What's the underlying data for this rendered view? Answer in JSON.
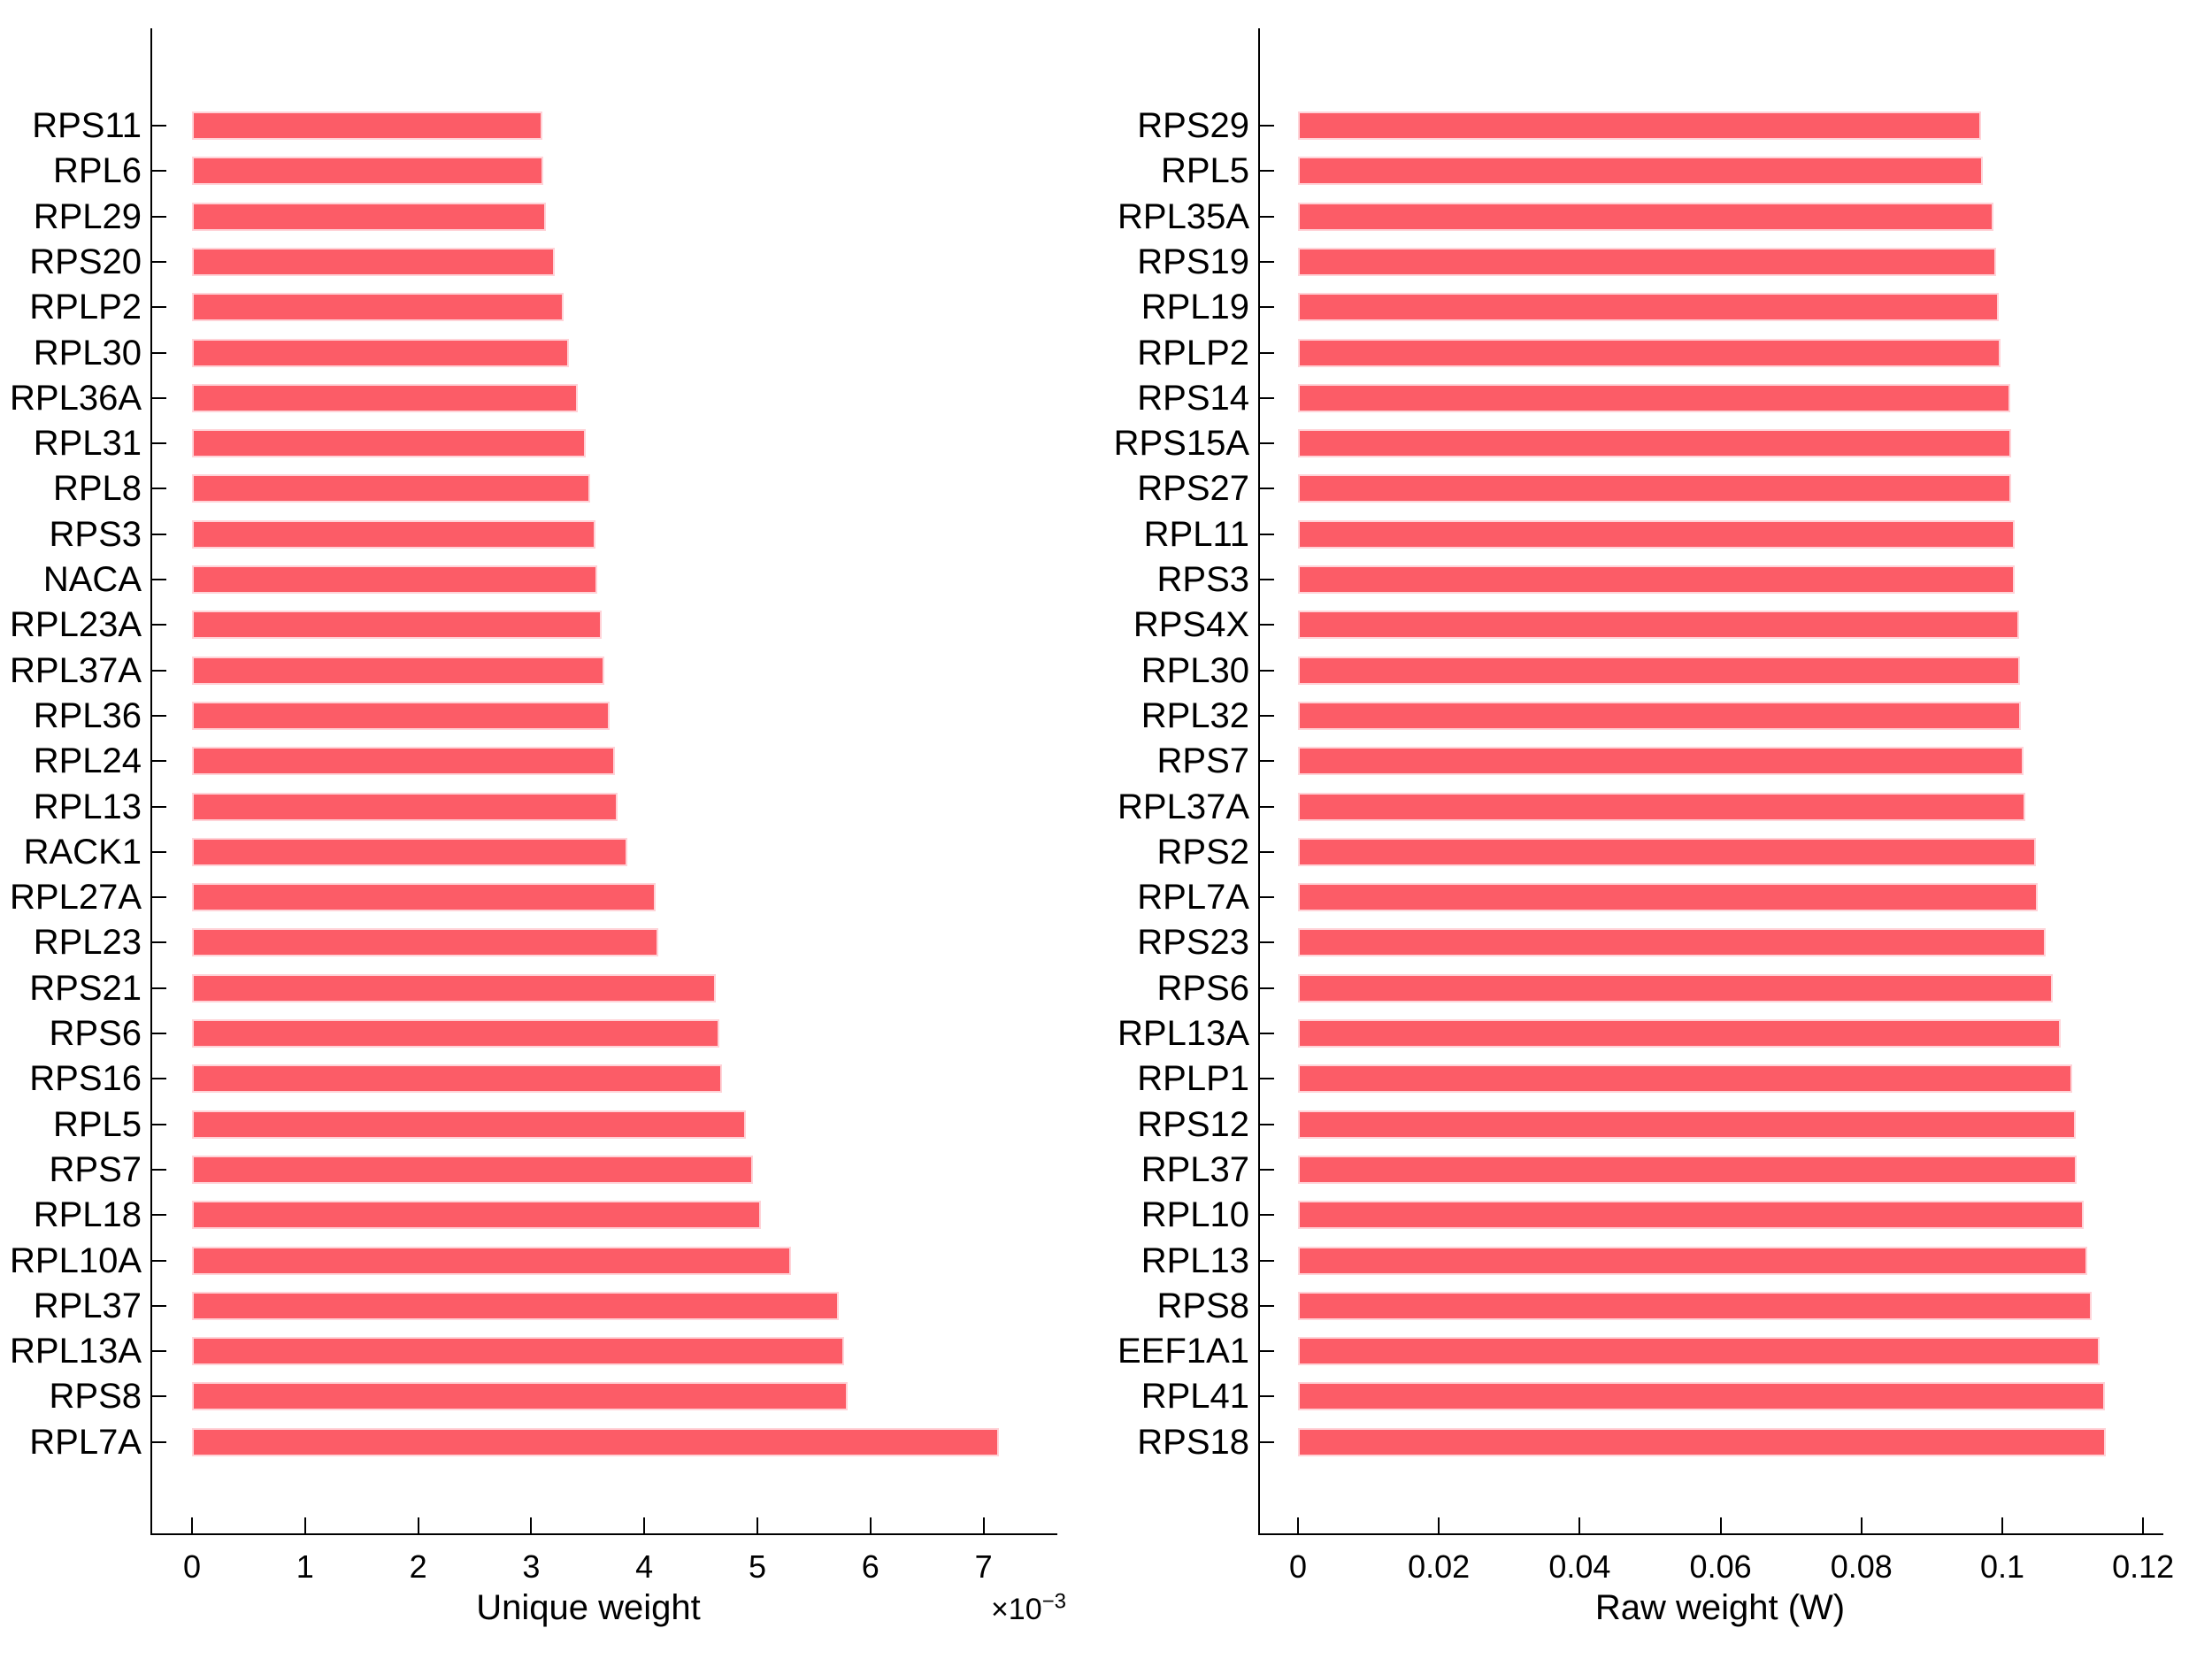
{
  "figure": {
    "background": "#ffffff",
    "bar_color": "#fc5c67",
    "bar_edge_color": "#ffd3d8",
    "axis_color": "#000000",
    "text_color": "#000000"
  },
  "chart_data": [
    {
      "type": "bar",
      "orientation": "horizontal",
      "title": "",
      "xlabel": "Unique weight",
      "multiplier_base": "×10",
      "multiplier_exp": "−3",
      "value_unit": "1e-3",
      "grid": false,
      "categories": [
        "RPS11",
        "RPL6",
        "RPL29",
        "RPS20",
        "RPLP2",
        "RPL30",
        "RPL36A",
        "RPL31",
        "RPL8",
        "RPS3",
        "NACA",
        "RPL23A",
        "RPL37A",
        "RPL36",
        "RPL24",
        "RPL13",
        "RACK1",
        "RPL27A",
        "RPL23",
        "RPS21",
        "RPS6",
        "RPS16",
        "RPL5",
        "RPS7",
        "RPL18",
        "RPL10A",
        "RPL37",
        "RPL13A",
        "RPS8",
        "RPL7A"
      ],
      "values": [
        3.1,
        3.11,
        3.13,
        3.21,
        3.29,
        3.33,
        3.41,
        3.48,
        3.52,
        3.57,
        3.58,
        3.62,
        3.65,
        3.69,
        3.74,
        3.76,
        3.85,
        4.1,
        4.12,
        4.63,
        4.66,
        4.69,
        4.9,
        4.96,
        5.03,
        5.3,
        5.72,
        5.77,
        5.8,
        7.14
      ],
      "xtick_labels": [
        "0",
        "1",
        "2",
        "3",
        "4",
        "5",
        "6",
        "7"
      ],
      "xtick_values": [
        0,
        1,
        2,
        3,
        4,
        5,
        6,
        7
      ],
      "xlim": [
        0,
        7.6
      ]
    },
    {
      "type": "bar",
      "orientation": "horizontal",
      "title": "",
      "xlabel": "Raw weight (W)",
      "grid": false,
      "categories": [
        "RPS29",
        "RPL5",
        "RPL35A",
        "RPS19",
        "RPL19",
        "RPLP2",
        "RPS14",
        "RPS15A",
        "RPS27",
        "RPL11",
        "RPS3",
        "RPS4X",
        "RPL30",
        "RPL32",
        "RPS7",
        "RPL37A",
        "RPS2",
        "RPL7A",
        "RPS23",
        "RPS6",
        "RPL13A",
        "RPLP1",
        "RPS12",
        "RPL37",
        "RPL10",
        "RPL13",
        "RPS8",
        "EEF1A1",
        "RPL41",
        "RPS18"
      ],
      "values": [
        0.097,
        0.0972,
        0.0987,
        0.0991,
        0.0995,
        0.0997,
        0.1011,
        0.1012,
        0.1013,
        0.1017,
        0.1018,
        0.1024,
        0.1025,
        0.1026,
        0.103,
        0.1033,
        0.1048,
        0.105,
        0.1062,
        0.1071,
        0.1083,
        0.1099,
        0.1104,
        0.1106,
        0.1116,
        0.1121,
        0.1127,
        0.1138,
        0.1146,
        0.1147
      ],
      "xtick_labels": [
        "0",
        "0.02",
        "0.04",
        "0.06",
        "0.08",
        "0.1",
        "0.12"
      ],
      "xtick_values": [
        0,
        0.02,
        0.04,
        0.06,
        0.08,
        0.1,
        0.12
      ],
      "xlim": [
        0,
        0.123
      ]
    }
  ]
}
